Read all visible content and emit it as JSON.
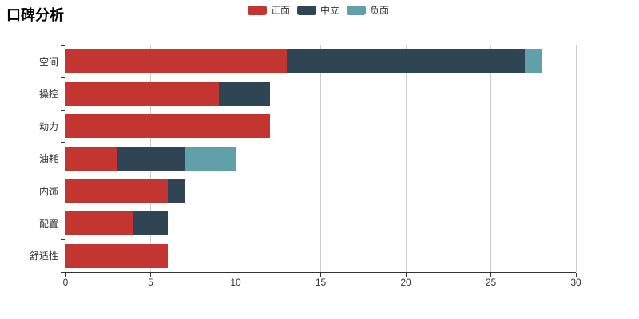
{
  "title": "口碑分析",
  "legend": {
    "items": [
      {
        "label": "正面",
        "color": "#c23531"
      },
      {
        "label": "中立",
        "color": "#2f4554"
      },
      {
        "label": "负面",
        "color": "#61a0a8"
      }
    ]
  },
  "chart_data": {
    "type": "bar",
    "orientation": "horizontal",
    "stacked": true,
    "title": "口碑分析",
    "categories": [
      "空间",
      "操控",
      "动力",
      "油耗",
      "内饰",
      "配置",
      "舒适性"
    ],
    "series": [
      {
        "name": "正面",
        "color": "#c23531",
        "values": [
          13,
          9,
          12,
          3,
          6,
          4,
          6
        ]
      },
      {
        "name": "中立",
        "color": "#2f4554",
        "values": [
          14,
          3,
          0,
          4,
          1,
          2,
          0
        ]
      },
      {
        "name": "负面",
        "color": "#61a0a8",
        "values": [
          1,
          0,
          0,
          3,
          0,
          0,
          0
        ]
      }
    ],
    "xlabel": "",
    "ylabel": "",
    "xlim": [
      0,
      30
    ],
    "xticks": [
      0,
      5,
      10,
      15,
      20,
      25,
      30
    ],
    "grid": true,
    "legend_position": "top-center",
    "gridline_color": "#cccccc",
    "axis_color": "#333333",
    "background_color": "#ffffff"
  }
}
